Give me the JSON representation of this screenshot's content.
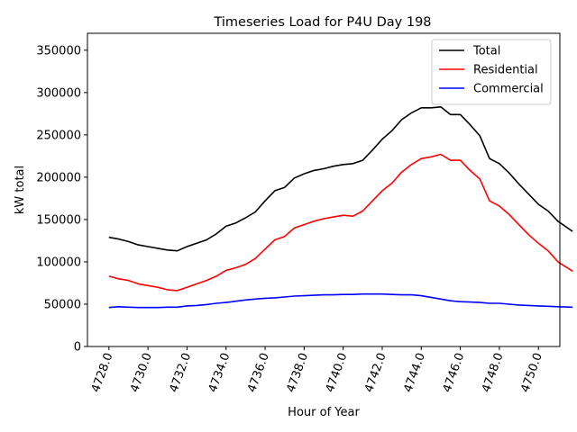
{
  "chart_data": {
    "type": "line",
    "title": "Timeseries Load for P4U   Day 198",
    "xlabel": "Hour of Year",
    "ylabel": "kW total",
    "xlim": [
      4726.9,
      4751.1
    ],
    "ylim": [
      0,
      370000
    ],
    "xticks": [
      4728,
      4730,
      4732,
      4734,
      4736,
      4738,
      4740,
      4742,
      4744,
      4746,
      4748,
      4750
    ],
    "xtick_labels": [
      "4728.0",
      "4730.0",
      "4732.0",
      "4734.0",
      "4736.0",
      "4738.0",
      "4740.0",
      "4742.0",
      "4744.0",
      "4746.0",
      "4748.0",
      "4750.0"
    ],
    "yticks": [
      0,
      50000,
      100000,
      150000,
      200000,
      250000,
      300000,
      350000
    ],
    "ytick_labels": [
      "0",
      "50000",
      "100000",
      "150000",
      "200000",
      "250000",
      "300000",
      "350000"
    ],
    "legend_position": "top-right",
    "x": [
      4728.0,
      4728.5,
      4729.0,
      4729.5,
      4730.0,
      4730.5,
      4731.0,
      4731.5,
      4732.0,
      4732.5,
      4733.0,
      4733.5,
      4734.0,
      4734.5,
      4735.0,
      4735.5,
      4736.0,
      4736.5,
      4737.0,
      4737.5,
      4738.0,
      4738.5,
      4739.0,
      4739.5,
      4740.0,
      4740.5,
      4741.0,
      4741.5,
      4742.0,
      4742.5,
      4743.0,
      4743.5,
      4744.0,
      4744.5,
      4745.0,
      4745.5,
      4746.0,
      4746.5,
      4747.0,
      4747.5,
      4748.0,
      4748.5,
      4749.0,
      4749.5,
      4750.0,
      4750.5,
      4751.0,
      4751.75
    ],
    "series": [
      {
        "name": "Total",
        "color": "#000000",
        "values": [
          129000,
          127000,
          124000,
          120000,
          118000,
          116000,
          114000,
          113000,
          118000,
          122000,
          126000,
          133000,
          142000,
          146000,
          152000,
          159000,
          172000,
          184000,
          188000,
          199000,
          204000,
          208000,
          210000,
          213000,
          215000,
          216000,
          220000,
          232000,
          245000,
          255000,
          268000,
          276000,
          282000,
          282000,
          283000,
          274000,
          274000,
          262000,
          249000,
          222000,
          216000,
          205000,
          192000,
          180000,
          168000,
          160000,
          148000,
          136000
        ]
      },
      {
        "name": "Residential",
        "color": "#ff0000",
        "values": [
          83000,
          80000,
          78000,
          74000,
          72000,
          70000,
          67000,
          66000,
          70000,
          74000,
          78000,
          83000,
          90000,
          93000,
          97000,
          104000,
          115000,
          126000,
          130000,
          140000,
          144000,
          148000,
          151000,
          153000,
          155000,
          154000,
          160000,
          172000,
          184000,
          193000,
          206000,
          215000,
          222000,
          224000,
          227000,
          220000,
          220000,
          208000,
          198000,
          172000,
          166000,
          156000,
          144000,
          132000,
          122000,
          113000,
          100000,
          89000
        ]
      },
      {
        "name": "Commercial",
        "color": "#0000ff",
        "values": [
          46000,
          47000,
          46500,
          46000,
          46000,
          46000,
          46500,
          46500,
          48000,
          48500,
          49500,
          51000,
          52000,
          53500,
          55000,
          56000,
          57000,
          57500,
          58500,
          59500,
          60000,
          60500,
          61000,
          61000,
          61500,
          61500,
          62000,
          62000,
          62000,
          61500,
          61000,
          61000,
          60000,
          58000,
          56000,
          54000,
          53000,
          52500,
          52000,
          51000,
          51000,
          50000,
          49000,
          48500,
          48000,
          47500,
          47000,
          46500
        ]
      }
    ]
  }
}
